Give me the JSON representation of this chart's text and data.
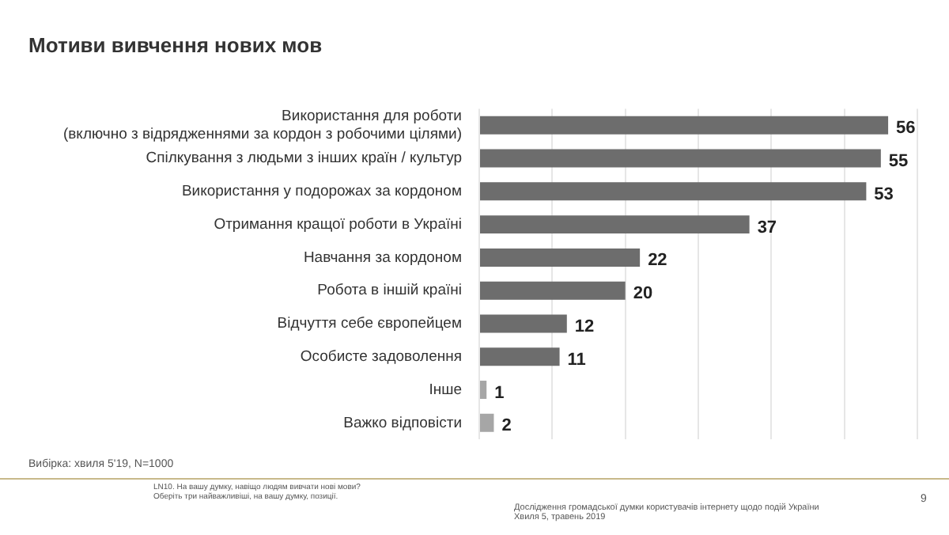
{
  "chart_data": {
    "type": "bar",
    "orientation": "horizontal",
    "title": "Мотиви вивчення нових мов",
    "categories": [
      "Використання для роботи\n(включно з відрядженнями за кордон з робочими цілями)",
      "Спілкування з людьми з інших країн / культур",
      "Використання у подорожах за кордоном",
      "Отримання кращої роботи в Україні",
      "Навчання за кордоном",
      "Робота в іншій країні",
      "Відчуття себе європейцем",
      "Особисте задоволення",
      "Інше",
      "Важко відповісти"
    ],
    "values": [
      56,
      55,
      53,
      37,
      22,
      20,
      12,
      11,
      1,
      2
    ],
    "colors": [
      "#6d6d6d",
      "#6d6d6d",
      "#6d6d6d",
      "#6d6d6d",
      "#6d6d6d",
      "#6d6d6d",
      "#6d6d6d",
      "#6d6d6d",
      "#a6a6a6",
      "#a6a6a6"
    ],
    "xlim": [
      0,
      60
    ],
    "xticks": [
      {
        "value": 0,
        "label": null
      },
      {
        "value": 10,
        "label": null
      },
      {
        "value": 20,
        "label": null
      },
      {
        "value": 30,
        "label": null
      },
      {
        "value": 40,
        "label": null
      },
      {
        "value": 50,
        "label": null
      },
      {
        "value": 60,
        "label": null
      }
    ],
    "grid": "x",
    "tick_labels": "y",
    "data_labels": true,
    "legend": false,
    "annotations": [
      "Вибірка: хвиля 5'19, N=1000",
      "LN10. На вашу думку, навіщо людям вивчати нові мови?\nОберіть три найважливіші, на вашу думку, позиції.",
      "Дослідження громадської думки користувачів інтернету щодо подій України\nХвиля 5, травень 2019",
      "9"
    ]
  }
}
